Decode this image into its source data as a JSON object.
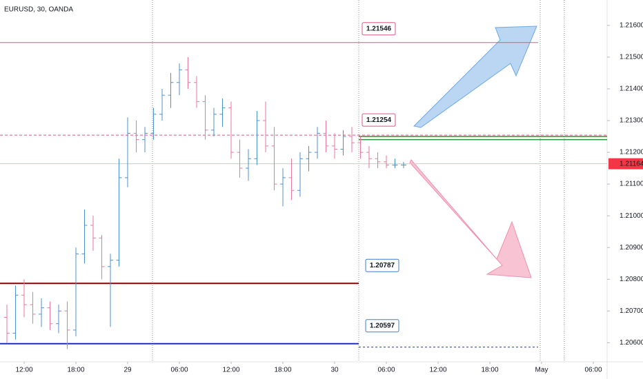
{
  "chart_data": {
    "type": "ohlc",
    "title": "EURUSD, 30, OANDA",
    "up_color": "#4a8fd6",
    "down_color": "#e8779b",
    "ohlc": [
      [
        1.2068,
        1.2072,
        1.206,
        1.2063
      ],
      [
        1.2063,
        1.2078,
        1.2061,
        1.2075
      ],
      [
        1.2075,
        1.208,
        1.2068,
        1.2072
      ],
      [
        1.2072,
        1.2076,
        1.2066,
        1.2069
      ],
      [
        1.2069,
        1.2074,
        1.2065,
        1.2071
      ],
      [
        1.2071,
        1.2073,
        1.2064,
        1.2066
      ],
      [
        1.2066,
        1.2072,
        1.2063,
        1.207
      ],
      [
        1.207,
        1.2073,
        1.2058,
        1.2064
      ],
      [
        1.2064,
        1.209,
        1.2062,
        1.2088
      ],
      [
        1.2088,
        1.2102,
        1.2085,
        1.2097
      ],
      [
        1.2097,
        1.21,
        1.2089,
        1.2093
      ],
      [
        1.2093,
        1.2094,
        1.208,
        1.2084
      ],
      [
        1.2084,
        1.2088,
        1.2065,
        1.2086
      ],
      [
        1.2086,
        1.2118,
        1.2084,
        1.2112
      ],
      [
        1.2112,
        1.2131,
        1.2109,
        1.2126
      ],
      [
        1.2126,
        1.213,
        1.212,
        1.2124
      ],
      [
        1.2124,
        1.2128,
        1.212,
        1.2126
      ],
      [
        1.2126,
        1.2134,
        1.2124,
        1.2132
      ],
      [
        1.2132,
        1.214,
        1.213,
        1.2138
      ],
      [
        1.2138,
        1.2145,
        1.2134,
        1.2142
      ],
      [
        1.2142,
        1.2148,
        1.2138,
        1.2146
      ],
      [
        1.2146,
        1.215,
        1.214,
        1.2142
      ],
      [
        1.2142,
        1.2144,
        1.2134,
        1.2136
      ],
      [
        1.2136,
        1.2138,
        1.2124,
        1.2127
      ],
      [
        1.2127,
        1.2134,
        1.2125,
        1.2132
      ],
      [
        1.2132,
        1.2137,
        1.2128,
        1.2134
      ],
      [
        1.2134,
        1.2136,
        1.2118,
        1.212
      ],
      [
        1.212,
        1.2124,
        1.2112,
        1.2115
      ],
      [
        1.2115,
        1.2121,
        1.2111,
        1.2118
      ],
      [
        1.2118,
        1.2133,
        1.2116,
        1.213
      ],
      [
        1.213,
        1.2136,
        1.212,
        1.2122
      ],
      [
        1.2122,
        1.2128,
        1.2108,
        1.211
      ],
      [
        1.211,
        1.2115,
        1.2103,
        1.2112
      ],
      [
        1.2112,
        1.2118,
        1.2105,
        1.2108
      ],
      [
        1.2108,
        1.212,
        1.2106,
        1.2118
      ],
      [
        1.2118,
        1.2122,
        1.2114,
        1.212
      ],
      [
        1.212,
        1.2128,
        1.2118,
        1.2126
      ],
      [
        1.2126,
        1.213,
        1.212,
        1.2122
      ],
      [
        1.2122,
        1.2126,
        1.2118,
        1.2121
      ],
      [
        1.2121,
        1.2127,
        1.2119,
        1.2125
      ],
      [
        1.2125,
        1.2128,
        1.212,
        1.2123
      ],
      [
        1.2123,
        1.2125,
        1.2118,
        1.212
      ],
      [
        1.212,
        1.2122,
        1.2115,
        1.2118
      ],
      [
        1.2118,
        1.212,
        1.2115,
        1.2117
      ],
      [
        1.2117,
        1.2119,
        1.2115,
        1.2116
      ],
      [
        1.2116,
        1.2118,
        1.2115,
        1.2116
      ],
      [
        1.2116,
        1.2117,
        1.2115,
        1.2116
      ]
    ],
    "xlim": [
      -0.8,
      69.6
    ],
    "xticks": [
      {
        "value": 2,
        "label": "12:00"
      },
      {
        "value": 8,
        "label": "18:00"
      },
      {
        "value": 14,
        "label": "29"
      },
      {
        "value": 20,
        "label": "06:00"
      },
      {
        "value": 26,
        "label": "12:00"
      },
      {
        "value": 32,
        "label": "18:00"
      },
      {
        "value": 38,
        "label": "30"
      },
      {
        "value": 44,
        "label": "06:00"
      },
      {
        "value": 50,
        "label": "12:00"
      },
      {
        "value": 56,
        "label": "18:00"
      },
      {
        "value": 62,
        "label": "May"
      },
      {
        "value": 68,
        "label": "06:00"
      }
    ],
    "ylim": [
      1.2054,
      1.2168
    ],
    "yticks": [
      {
        "value": 1.206,
        "label": "1.20600"
      },
      {
        "value": 1.207,
        "label": "1.20700"
      },
      {
        "value": 1.208,
        "label": "1.20800"
      },
      {
        "value": 1.209,
        "label": "1.20900"
      },
      {
        "value": 1.21,
        "label": "1.21000"
      },
      {
        "value": 1.211,
        "label": "1.21100"
      },
      {
        "value": 1.212,
        "label": "1.21200"
      },
      {
        "value": 1.213,
        "label": "1.21300"
      },
      {
        "value": 1.214,
        "label": "1.21400"
      },
      {
        "value": 1.215,
        "label": "1.21500"
      },
      {
        "value": 1.216,
        "label": "1.21600"
      }
    ],
    "levels": [
      {
        "value": 1.21546,
        "color": "#e0557f",
        "style": "solid"
      },
      {
        "value": 1.21254,
        "color": "#e0557f",
        "style": "dashed"
      },
      {
        "value": 1.20787,
        "color": "#8b0000",
        "style": "solid"
      },
      {
        "value": 1.20597,
        "color": "#1a2fc0",
        "style": "solid"
      }
    ],
    "support_lines": [
      {
        "value": 1.2125,
        "color": "#2e8b3a"
      },
      {
        "value": 1.2124,
        "color": "#2e8b3a"
      }
    ],
    "current_price": 1.21164,
    "current_color": "#f23645"
  }
}
